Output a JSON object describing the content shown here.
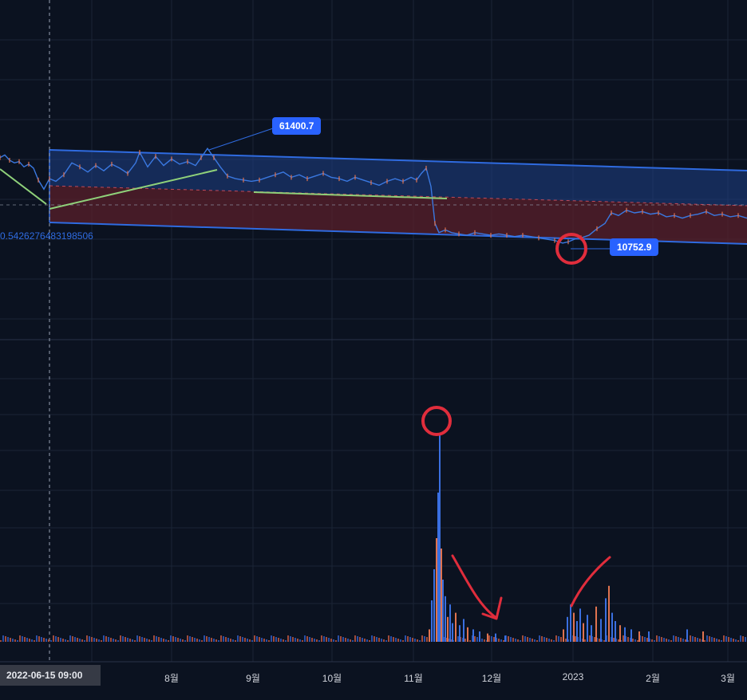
{
  "chart_data": [
    {
      "type": "line",
      "x_categories": [
        "2022-06-15",
        "8월",
        "9월",
        "10월",
        "11월",
        "12월",
        "2023",
        "2월",
        "3월"
      ],
      "price_labels": [
        {
          "id": "high",
          "value": "61400.7"
        },
        {
          "id": "low",
          "value": "10752.9"
        }
      ],
      "ratio_label": "0.5426276483198506",
      "price_series": [
        {
          "t": 0,
          "y": 0.62
        },
        {
          "t": 6,
          "y": 0.64
        },
        {
          "t": 12,
          "y": 0.6
        },
        {
          "t": 18,
          "y": 0.58
        },
        {
          "t": 24,
          "y": 0.59
        },
        {
          "t": 30,
          "y": 0.55
        },
        {
          "t": 36,
          "y": 0.57
        },
        {
          "t": 42,
          "y": 0.54
        },
        {
          "t": 48,
          "y": 0.45
        },
        {
          "t": 55,
          "y": 0.38
        },
        {
          "t": 62,
          "y": 0.46
        },
        {
          "t": 70,
          "y": 0.44
        },
        {
          "t": 80,
          "y": 0.49
        },
        {
          "t": 90,
          "y": 0.58
        },
        {
          "t": 100,
          "y": 0.55
        },
        {
          "t": 110,
          "y": 0.51
        },
        {
          "t": 120,
          "y": 0.56
        },
        {
          "t": 130,
          "y": 0.52
        },
        {
          "t": 140,
          "y": 0.57
        },
        {
          "t": 150,
          "y": 0.54
        },
        {
          "t": 160,
          "y": 0.5
        },
        {
          "t": 170,
          "y": 0.58
        },
        {
          "t": 175,
          "y": 0.66
        },
        {
          "t": 185,
          "y": 0.55
        },
        {
          "t": 195,
          "y": 0.63
        },
        {
          "t": 205,
          "y": 0.56
        },
        {
          "t": 215,
          "y": 0.61
        },
        {
          "t": 225,
          "y": 0.57
        },
        {
          "t": 235,
          "y": 0.59
        },
        {
          "t": 245,
          "y": 0.56
        },
        {
          "t": 252,
          "y": 0.62
        },
        {
          "t": 260,
          "y": 0.69
        },
        {
          "t": 268,
          "y": 0.62
        },
        {
          "t": 276,
          "y": 0.55
        },
        {
          "t": 285,
          "y": 0.48
        },
        {
          "t": 295,
          "y": 0.46
        },
        {
          "t": 305,
          "y": 0.45
        },
        {
          "t": 315,
          "y": 0.44
        },
        {
          "t": 325,
          "y": 0.45
        },
        {
          "t": 335,
          "y": 0.47
        },
        {
          "t": 345,
          "y": 0.49
        },
        {
          "t": 355,
          "y": 0.51
        },
        {
          "t": 365,
          "y": 0.47
        },
        {
          "t": 375,
          "y": 0.49
        },
        {
          "t": 385,
          "y": 0.46
        },
        {
          "t": 395,
          "y": 0.48
        },
        {
          "t": 405,
          "y": 0.5
        },
        {
          "t": 415,
          "y": 0.47
        },
        {
          "t": 425,
          "y": 0.46
        },
        {
          "t": 435,
          "y": 0.44
        },
        {
          "t": 445,
          "y": 0.47
        },
        {
          "t": 455,
          "y": 0.45
        },
        {
          "t": 465,
          "y": 0.43
        },
        {
          "t": 475,
          "y": 0.41
        },
        {
          "t": 485,
          "y": 0.44
        },
        {
          "t": 495,
          "y": 0.46
        },
        {
          "t": 505,
          "y": 0.44
        },
        {
          "t": 515,
          "y": 0.47
        },
        {
          "t": 522,
          "y": 0.45
        },
        {
          "t": 528,
          "y": 0.5
        },
        {
          "t": 534,
          "y": 0.54
        },
        {
          "t": 540,
          "y": 0.4
        },
        {
          "t": 545,
          "y": 0.12
        },
        {
          "t": 550,
          "y": 0.05
        },
        {
          "t": 558,
          "y": 0.07
        },
        {
          "t": 566,
          "y": 0.05
        },
        {
          "t": 575,
          "y": 0.04
        },
        {
          "t": 585,
          "y": 0.03
        },
        {
          "t": 595,
          "y": 0.05
        },
        {
          "t": 605,
          "y": 0.04
        },
        {
          "t": 615,
          "y": 0.03
        },
        {
          "t": 625,
          "y": 0.04
        },
        {
          "t": 635,
          "y": 0.03
        },
        {
          "t": 645,
          "y": 0.02
        },
        {
          "t": 655,
          "y": 0.03
        },
        {
          "t": 665,
          "y": 0.02
        },
        {
          "t": 675,
          "y": 0.01
        },
        {
          "t": 685,
          "y": 0.0
        },
        {
          "t": 695,
          "y": -0.01
        },
        {
          "t": 705,
          "y": -0.03
        },
        {
          "t": 712,
          "y": -0.02
        },
        {
          "t": 720,
          "y": 0.0
        },
        {
          "t": 728,
          "y": 0.01
        },
        {
          "t": 738,
          "y": 0.03
        },
        {
          "t": 748,
          "y": 0.08
        },
        {
          "t": 758,
          "y": 0.12
        },
        {
          "t": 766,
          "y": 0.2
        },
        {
          "t": 775,
          "y": 0.18
        },
        {
          "t": 785,
          "y": 0.22
        },
        {
          "t": 795,
          "y": 0.2
        },
        {
          "t": 805,
          "y": 0.21
        },
        {
          "t": 815,
          "y": 0.19
        },
        {
          "t": 825,
          "y": 0.2
        },
        {
          "t": 835,
          "y": 0.17
        },
        {
          "t": 845,
          "y": 0.18
        },
        {
          "t": 855,
          "y": 0.16
        },
        {
          "t": 865,
          "y": 0.18
        },
        {
          "t": 875,
          "y": 0.19
        },
        {
          "t": 885,
          "y": 0.21
        },
        {
          "t": 895,
          "y": 0.18
        },
        {
          "t": 905,
          "y": 0.19
        },
        {
          "t": 915,
          "y": 0.17
        },
        {
          "t": 925,
          "y": 0.18
        },
        {
          "t": 936,
          "y": 0.16
        }
      ],
      "grid": true
    },
    {
      "type": "bar",
      "title": "",
      "volume_series": [
        {
          "t": 537,
          "v": 0.06
        },
        {
          "t": 540,
          "v": 0.2
        },
        {
          "t": 543,
          "v": 0.35
        },
        {
          "t": 546,
          "v": 0.5
        },
        {
          "t": 548,
          "v": 0.72
        },
        {
          "t": 550,
          "v": 1.0
        },
        {
          "t": 552,
          "v": 0.45
        },
        {
          "t": 554,
          "v": 0.3
        },
        {
          "t": 557,
          "v": 0.22
        },
        {
          "t": 560,
          "v": 0.12
        },
        {
          "t": 563,
          "v": 0.18
        },
        {
          "t": 566,
          "v": 0.09
        },
        {
          "t": 570,
          "v": 0.14
        },
        {
          "t": 575,
          "v": 0.08
        },
        {
          "t": 580,
          "v": 0.11
        },
        {
          "t": 585,
          "v": 0.07
        },
        {
          "t": 592,
          "v": 0.06
        },
        {
          "t": 600,
          "v": 0.05
        },
        {
          "t": 610,
          "v": 0.04
        },
        {
          "t": 620,
          "v": 0.04
        },
        {
          "t": 632,
          "v": 0.03
        },
        {
          "t": 705,
          "v": 0.06
        },
        {
          "t": 710,
          "v": 0.12
        },
        {
          "t": 714,
          "v": 0.18
        },
        {
          "t": 718,
          "v": 0.14
        },
        {
          "t": 722,
          "v": 0.1
        },
        {
          "t": 726,
          "v": 0.16
        },
        {
          "t": 730,
          "v": 0.09
        },
        {
          "t": 735,
          "v": 0.13
        },
        {
          "t": 740,
          "v": 0.08
        },
        {
          "t": 746,
          "v": 0.17
        },
        {
          "t": 752,
          "v": 0.11
        },
        {
          "t": 758,
          "v": 0.21
        },
        {
          "t": 762,
          "v": 0.27
        },
        {
          "t": 766,
          "v": 0.14
        },
        {
          "t": 770,
          "v": 0.1
        },
        {
          "t": 776,
          "v": 0.08
        },
        {
          "t": 782,
          "v": 0.07
        },
        {
          "t": 790,
          "v": 0.06
        },
        {
          "t": 800,
          "v": 0.05
        },
        {
          "t": 812,
          "v": 0.05
        },
        {
          "t": 860,
          "v": 0.06
        },
        {
          "t": 880,
          "v": 0.05
        }
      ],
      "grid": true
    }
  ],
  "cursor_label": "2022-06-15   09:00",
  "colors": {
    "background": "#0b1220",
    "grid": "#1b2436",
    "channel_blue": "#2f6be0",
    "channel_fill_blue": "#1f3f86",
    "channel_fill_red": "#5a1f2a",
    "price_line": "#3a78e0",
    "up_candle": "#e0734f",
    "trend_green": "#8fd17a",
    "annotation_red": "#e02d3c",
    "tag_blue": "#2962ff"
  }
}
